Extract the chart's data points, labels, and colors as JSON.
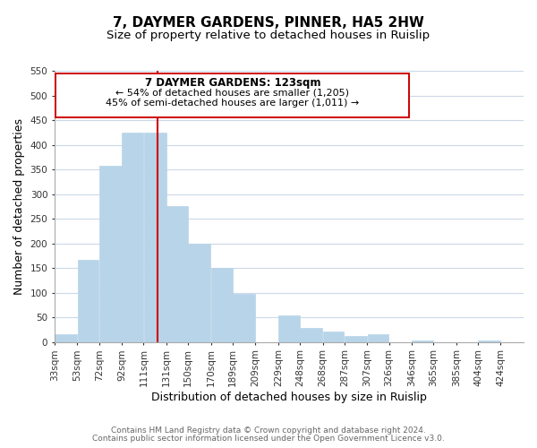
{
  "title": "7, DAYMER GARDENS, PINNER, HA5 2HW",
  "subtitle": "Size of property relative to detached houses in Ruislip",
  "xlabel": "Distribution of detached houses by size in Ruislip",
  "ylabel": "Number of detached properties",
  "bar_left_edges": [
    33,
    53,
    72,
    92,
    111,
    131,
    150,
    170,
    189,
    209,
    229,
    248,
    268,
    287,
    307,
    326,
    346,
    365,
    385,
    404
  ],
  "bar_heights": [
    15,
    167,
    357,
    425,
    425,
    275,
    200,
    150,
    97,
    0,
    54,
    28,
    22,
    13,
    15,
    0,
    3,
    0,
    0,
    3
  ],
  "bar_widths": [
    20,
    19,
    20,
    19,
    20,
    19,
    20,
    19,
    20,
    20,
    19,
    20,
    19,
    20,
    19,
    20,
    19,
    20,
    19,
    20
  ],
  "bar_color": "#b8d4e8",
  "vline_x": 123,
  "vline_color": "#cc0000",
  "ann_line1": "7 DAYMER GARDENS: 123sqm",
  "ann_line2": "← 54% of detached houses are smaller (1,205)",
  "ann_line3": "45% of semi-detached houses are larger (1,011) →",
  "ylim": [
    0,
    550
  ],
  "yticks": [
    0,
    50,
    100,
    150,
    200,
    250,
    300,
    350,
    400,
    450,
    500,
    550
  ],
  "xtick_labels": [
    "33sqm",
    "53sqm",
    "72sqm",
    "92sqm",
    "111sqm",
    "131sqm",
    "150sqm",
    "170sqm",
    "189sqm",
    "209sqm",
    "229sqm",
    "248sqm",
    "268sqm",
    "287sqm",
    "307sqm",
    "326sqm",
    "346sqm",
    "365sqm",
    "385sqm",
    "404sqm",
    "424sqm"
  ],
  "xtick_positions": [
    33,
    53,
    72,
    92,
    111,
    131,
    150,
    170,
    189,
    209,
    229,
    248,
    268,
    287,
    307,
    326,
    346,
    365,
    385,
    404,
    424
  ],
  "footer_line1": "Contains HM Land Registry data © Crown copyright and database right 2024.",
  "footer_line2": "Contains public sector information licensed under the Open Government Licence v3.0.",
  "bg_color": "#ffffff",
  "grid_color": "#ccd9e8",
  "title_fontsize": 11,
  "subtitle_fontsize": 9.5,
  "xlabel_fontsize": 9,
  "ylabel_fontsize": 9,
  "tick_fontsize": 7.5,
  "footer_fontsize": 6.5,
  "annotation_fontsize": 8.5
}
